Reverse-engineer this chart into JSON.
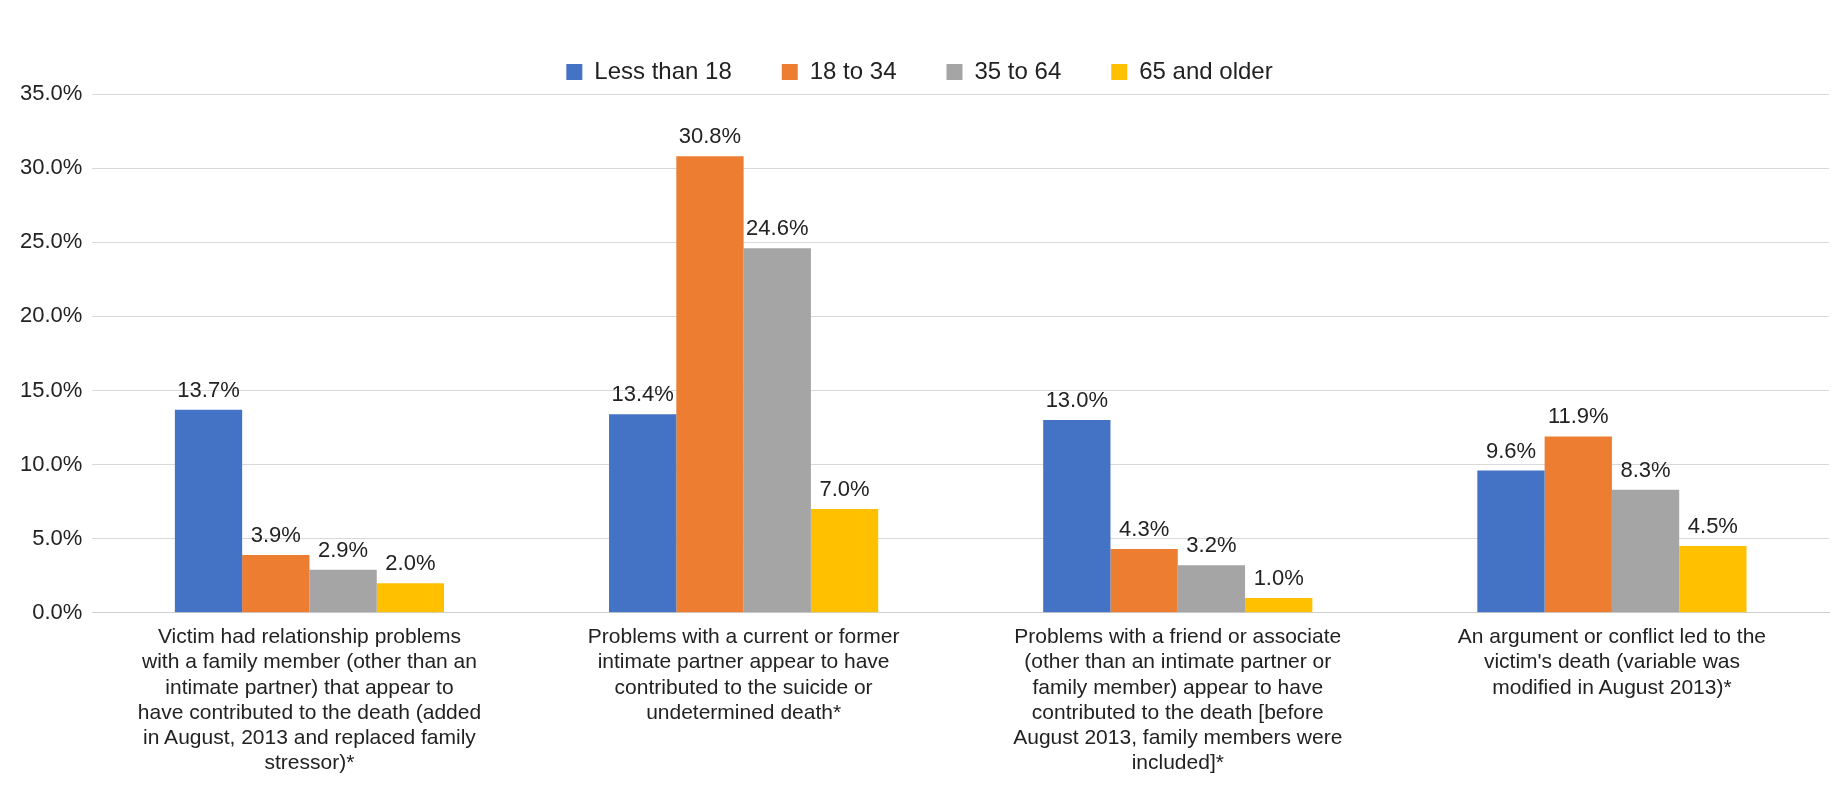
{
  "chart_data": {
    "type": "bar",
    "categories": [
      "Victim had relationship problems with a family member (other than an intimate partner) that appear to have contributed to the death (added in August, 2013 and replaced family stressor)*",
      "Problems with a current or former intimate partner appear to have contributed to the suicide or undetermined death*",
      "Problems with a friend or associate (other than an intimate partner or family member) appear to have contributed to the death [before August 2013, family members were included]*",
      "An argument or conflict led to the victim's death (variable was modified in August 2013)*"
    ],
    "series": [
      {
        "name": "Less than 18",
        "color": "#4472c4",
        "values": [
          13.7,
          13.4,
          13.0,
          9.6
        ],
        "value_labels": [
          "13.7%",
          "13.4%",
          "13.0%",
          "9.6%"
        ]
      },
      {
        "name": "18 to 34",
        "color": "#ed7d31",
        "values": [
          3.9,
          30.8,
          4.3,
          11.9
        ],
        "value_labels": [
          "3.9%",
          "30.8%",
          "4.3%",
          "11.9%"
        ]
      },
      {
        "name": "35 to 64",
        "color": "#a5a5a5",
        "values": [
          2.9,
          24.6,
          3.2,
          8.3
        ],
        "value_labels": [
          "2.9%",
          "24.6%",
          "3.2%",
          "8.3%"
        ]
      },
      {
        "name": "65 and older",
        "color": "#ffc000",
        "values": [
          2.0,
          7.0,
          1.0,
          4.5
        ],
        "value_labels": [
          "2.0%",
          "7.0%",
          "1.0%",
          "4.5%"
        ]
      }
    ],
    "ylim": [
      0,
      35
    ],
    "yticks": [
      {
        "value": 0,
        "label": "0.0%"
      },
      {
        "value": 5,
        "label": "5.0%"
      },
      {
        "value": 10,
        "label": "10.0%"
      },
      {
        "value": 15,
        "label": "15.0%"
      },
      {
        "value": 20,
        "label": "20.0%"
      },
      {
        "value": 25,
        "label": "25.0%"
      },
      {
        "value": 30,
        "label": "30.0%"
      },
      {
        "value": 35,
        "label": "35.0%"
      }
    ],
    "grid": "y",
    "legend": "top"
  }
}
